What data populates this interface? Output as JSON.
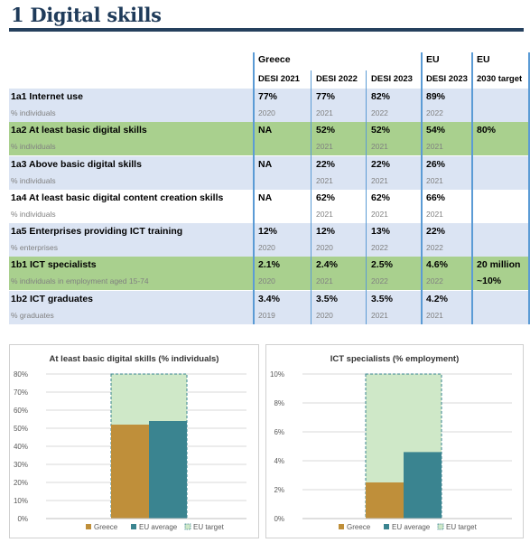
{
  "page": {
    "title": "1 Digital skills"
  },
  "table": {
    "group_headers": {
      "greece": "Greece",
      "eu": "EU",
      "eu_target": "EU"
    },
    "col_headers": [
      "DESI 2021",
      "DESI 2022",
      "DESI 2023",
      "DESI 2023",
      "2030 target"
    ],
    "rows": [
      {
        "label": "1a1 Internet use",
        "unit": "% individuals",
        "values": [
          "77%",
          "77%",
          "82%",
          "89%",
          ""
        ],
        "years": [
          "2020",
          "2021",
          "2022",
          "2022"
        ],
        "target2": ""
      },
      {
        "label": "1a2 At least basic digital skills",
        "unit": "% individuals",
        "values": [
          "NA",
          "52%",
          "52%",
          "54%",
          "80%"
        ],
        "years": [
          "",
          "2021",
          "2021",
          "2021"
        ],
        "target2": ""
      },
      {
        "label": "1a3 Above basic digital skills",
        "unit": "% individuals",
        "values": [
          "NA",
          "22%",
          "22%",
          "26%",
          ""
        ],
        "years": [
          "",
          "2021",
          "2021",
          "2021"
        ],
        "target2": ""
      },
      {
        "label": "1a4 At least basic digital content creation skills",
        "unit": "% individuals",
        "values": [
          "NA",
          "62%",
          "62%",
          "66%",
          ""
        ],
        "years": [
          "",
          "2021",
          "2021",
          "2021"
        ],
        "target2": ""
      },
      {
        "label": "1a5 Enterprises providing ICT training",
        "unit": "% enterprises",
        "values": [
          "12%",
          "12%",
          "13%",
          "22%",
          ""
        ],
        "years": [
          "2020",
          "2020",
          "2022",
          "2022"
        ],
        "target2": ""
      },
      {
        "label": "1b1 ICT specialists",
        "unit": "% individuals in employment aged 15-74",
        "values": [
          "2.1%",
          "2.4%",
          "2.5%",
          "4.6%",
          "20 million"
        ],
        "years": [
          "2020",
          "2021",
          "2022",
          "2022"
        ],
        "target2": "~10%"
      },
      {
        "label": "1b2 ICT graduates",
        "unit": "% graduates",
        "values": [
          "3.4%",
          "3.5%",
          "3.5%",
          "4.2%",
          ""
        ],
        "years": [
          "2019",
          "2020",
          "2021",
          "2021"
        ],
        "target2": ""
      }
    ]
  },
  "colors": {
    "blue_row": "#dbe4f3",
    "green_row": "#a9d08e",
    "greece": "#bf8f3a",
    "eu_average": "#3a8490",
    "eu_target_fill": "#cfe8c8",
    "eu_target_border": "#3a8490",
    "divider": "#5b9bd5",
    "title": "#1f3b5a"
  },
  "chart_data": [
    {
      "type": "bar",
      "title": "At least basic digital skills (% individuals)",
      "yticks": [
        "0%",
        "10%",
        "20%",
        "30%",
        "40%",
        "50%",
        "60%",
        "70%",
        "80%"
      ],
      "ylim": [
        0,
        80
      ],
      "series": [
        {
          "name": "Greece",
          "value": 52
        },
        {
          "name": "EU average",
          "value": 54
        }
      ],
      "target": {
        "name": "EU target",
        "value": 80
      },
      "legend": [
        "Greece",
        "EU average",
        "EU target"
      ],
      "grid": true,
      "legend_position": "bottom"
    },
    {
      "type": "bar",
      "title": "ICT specialists (% employment)",
      "yticks": [
        "0%",
        "2%",
        "4%",
        "6%",
        "8%",
        "10%"
      ],
      "ylim": [
        0,
        10
      ],
      "series": [
        {
          "name": "Greece",
          "value": 2.5
        },
        {
          "name": "EU average",
          "value": 4.6
        }
      ],
      "target": {
        "name": "EU target",
        "value": 10
      },
      "legend": [
        "Greece",
        "EU average",
        "EU target"
      ],
      "grid": true,
      "legend_position": "bottom"
    }
  ]
}
